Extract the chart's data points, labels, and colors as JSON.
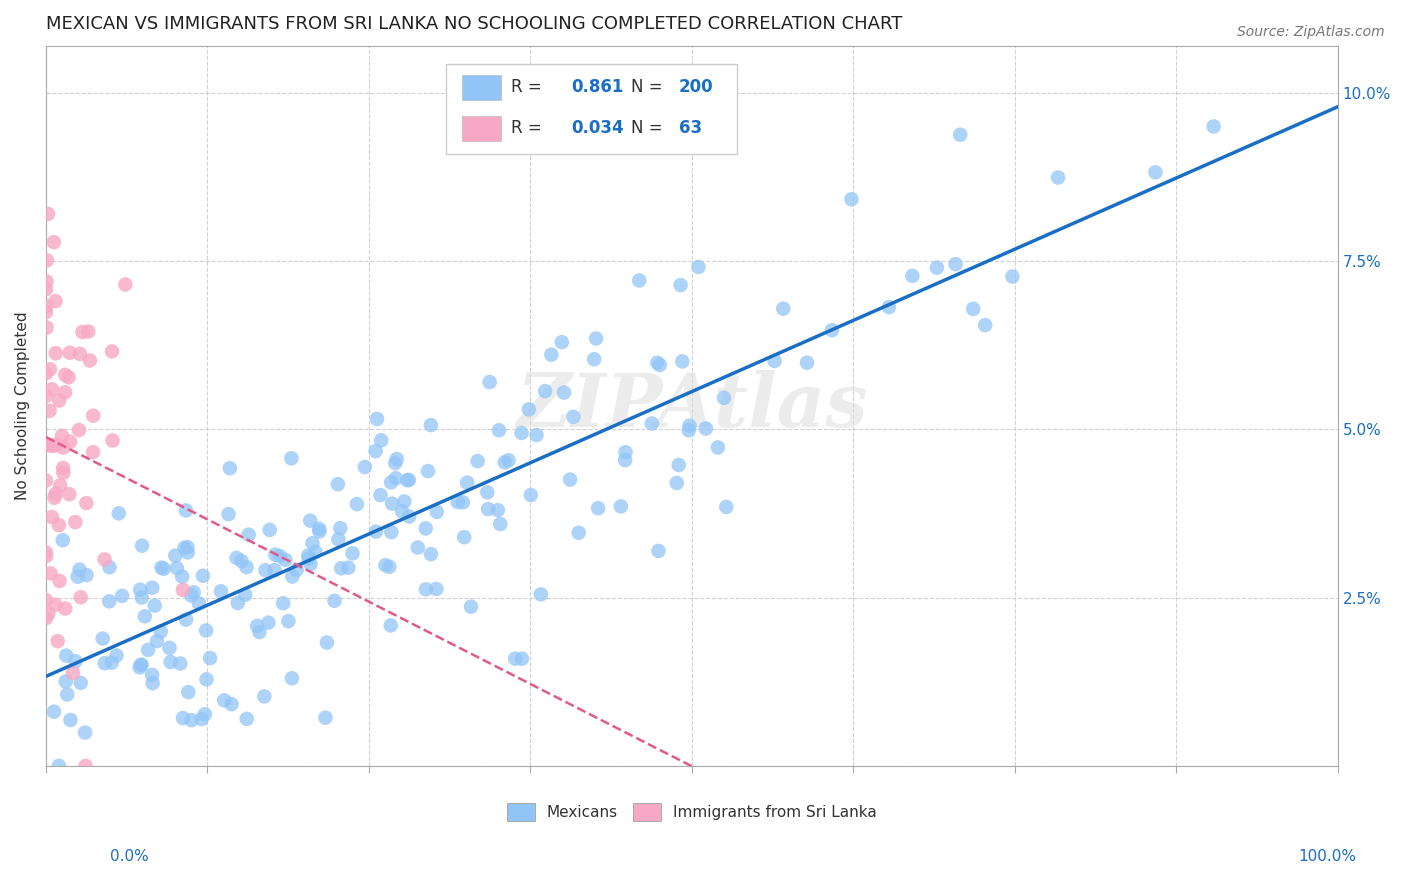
{
  "title": "MEXICAN VS IMMIGRANTS FROM SRI LANKA NO SCHOOLING COMPLETED CORRELATION CHART",
  "source": "Source: ZipAtlas.com",
  "ylabel": "No Schooling Completed",
  "ylim": [
    0.0,
    0.107
  ],
  "xlim": [
    0.0,
    1.0
  ],
  "yticks": [
    0.0,
    0.025,
    0.05,
    0.075,
    0.1
  ],
  "ytick_labels": [
    "",
    "2.5%",
    "5.0%",
    "7.5%",
    "10.0%"
  ],
  "mexican_color": "#92c5f7",
  "srilanka_color": "#f7a8c4",
  "mexican_line_color": "#1a6fc4",
  "srilanka_line_color": "#e05a8a",
  "R_mexican": 0.861,
  "N_mexican": 200,
  "R_srilanka": 0.034,
  "N_srilanka": 63,
  "background_color": "#ffffff",
  "grid_color": "#cccccc",
  "title_fontsize": 13,
  "axis_label_fontsize": 11,
  "tick_fontsize": 11
}
